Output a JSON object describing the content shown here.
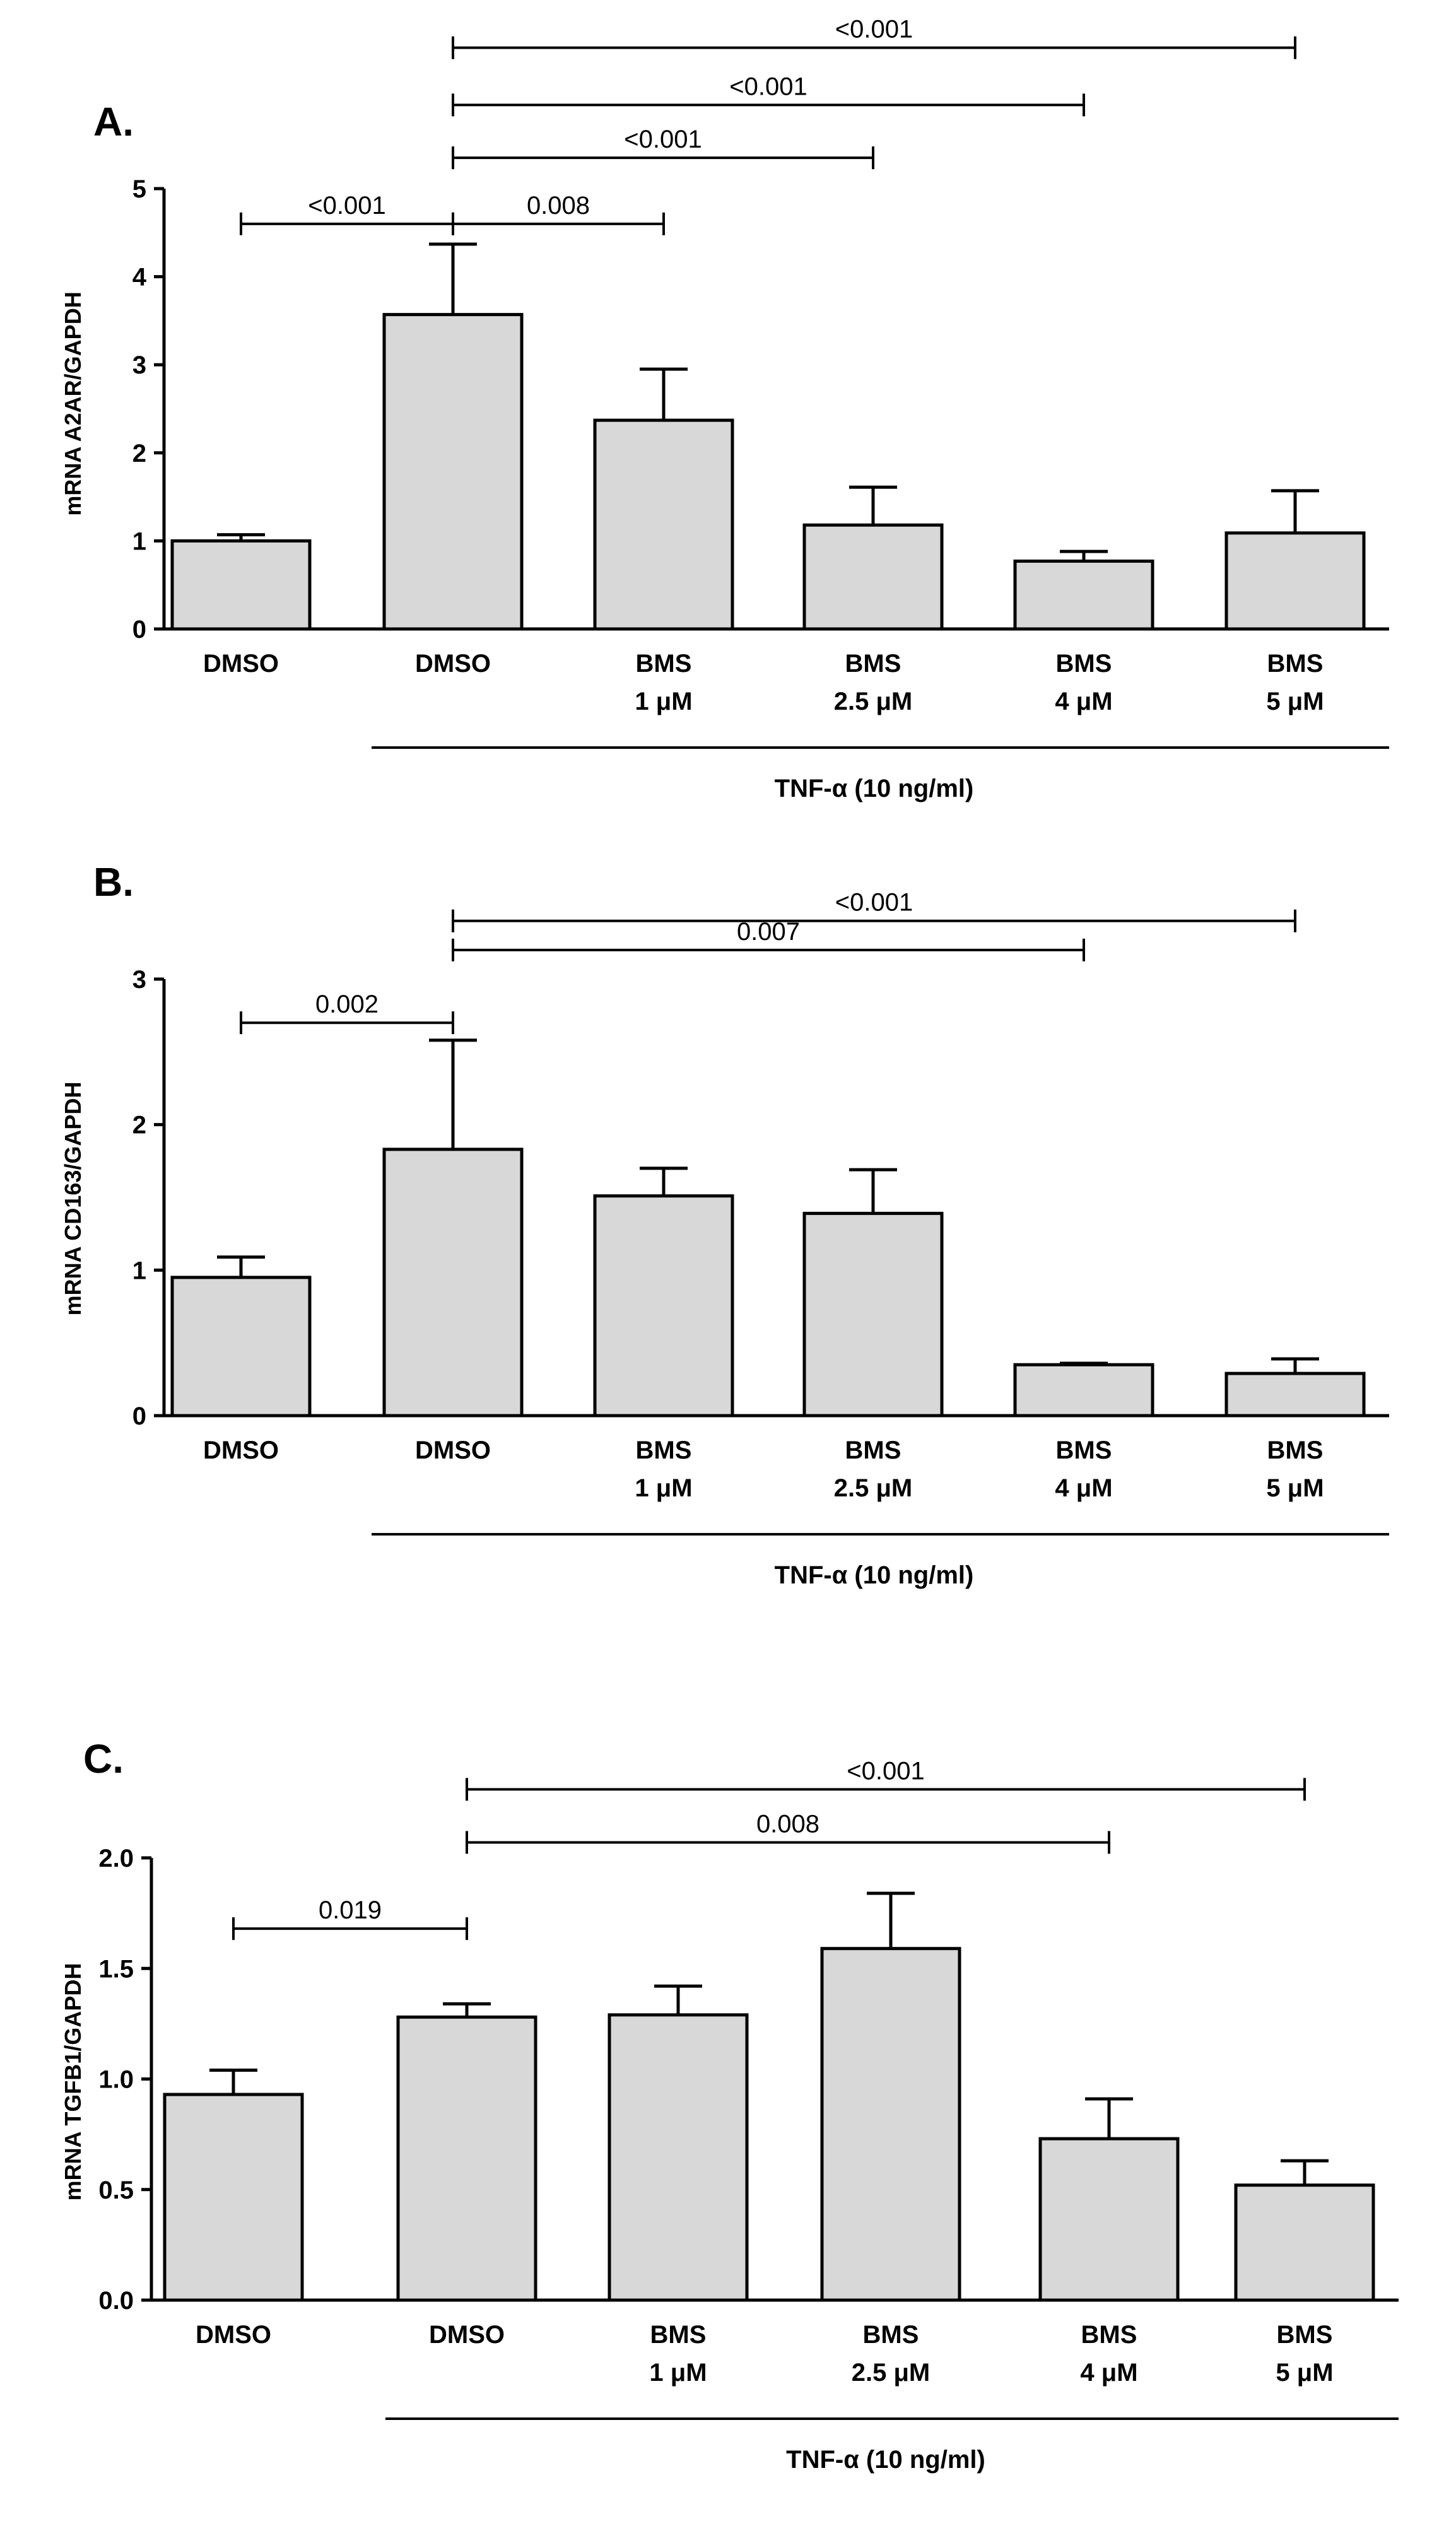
{
  "colors": {
    "bar_fill": "#d8d8d8",
    "stroke": "#000000",
    "background": "#ffffff"
  },
  "chart_data": [
    {
      "type": "bar",
      "panel_label": "A.",
      "ylabel": "mRNA A2AR/GAPDH",
      "ylim": [
        0,
        5
      ],
      "yticks": [
        0,
        1,
        2,
        3,
        4,
        5
      ],
      "ytick_labels": [
        "0",
        "1",
        "2",
        "3",
        "4",
        "5"
      ],
      "categories": [
        {
          "line1": "DMSO",
          "line2": ""
        },
        {
          "line1": "DMSO",
          "line2": ""
        },
        {
          "line1": "BMS",
          "line2": "1 μM"
        },
        {
          "line1": "BMS",
          "line2": "2.5 μM"
        },
        {
          "line1": "BMS",
          "line2": "4 μM"
        },
        {
          "line1": "BMS",
          "line2": "5 μM"
        }
      ],
      "values": [
        1.0,
        3.57,
        2.37,
        1.18,
        0.77,
        1.09
      ],
      "errors": [
        0.07,
        0.8,
        0.58,
        0.43,
        0.11,
        0.48
      ],
      "group_label": "TNF-α (10 ng/ml)",
      "group_span": [
        1,
        5
      ],
      "significance": [
        {
          "from": 0,
          "to": 1,
          "label": "<0.001",
          "y": 4.6
        },
        {
          "from": 1,
          "to": 2,
          "label": "0.008",
          "y": 4.6
        },
        {
          "from": 1,
          "to": 3,
          "label": "<0.001",
          "y": 5.35
        },
        {
          "from": 1,
          "to": 4,
          "label": "<0.001",
          "y": 5.95
        },
        {
          "from": 1,
          "to": 5,
          "label": "<0.001",
          "y": 6.6
        }
      ]
    },
    {
      "type": "bar",
      "panel_label": "B.",
      "ylabel": "mRNA CD163/GAPDH",
      "ylim": [
        0,
        3
      ],
      "yticks": [
        0,
        1,
        2,
        3
      ],
      "ytick_labels": [
        "0",
        "1",
        "2",
        "3"
      ],
      "categories": [
        {
          "line1": "DMSO",
          "line2": ""
        },
        {
          "line1": "DMSO",
          "line2": ""
        },
        {
          "line1": "BMS",
          "line2": "1 μM"
        },
        {
          "line1": "BMS",
          "line2": "2.5 μM"
        },
        {
          "line1": "BMS",
          "line2": "4 μM"
        },
        {
          "line1": "BMS",
          "line2": "5 μM"
        }
      ],
      "values": [
        0.95,
        1.83,
        1.51,
        1.39,
        0.35,
        0.29
      ],
      "errors": [
        0.14,
        0.75,
        0.19,
        0.3,
        0.01,
        0.1
      ],
      "group_label": "TNF-α (10 ng/ml)",
      "group_span": [
        1,
        5
      ],
      "significance": [
        {
          "from": 0,
          "to": 1,
          "label": "0.002",
          "y": 2.7
        },
        {
          "from": 1,
          "to": 4,
          "label": "0.007",
          "y": 3.2
        },
        {
          "from": 1,
          "to": 5,
          "label": "<0.001",
          "y": 3.4
        }
      ]
    },
    {
      "type": "bar",
      "panel_label": "C.",
      "ylabel": "mRNA TGFB1/GAPDH",
      "ylim": [
        0,
        2.0
      ],
      "yticks": [
        0,
        0.5,
        1.0,
        1.5,
        2.0
      ],
      "ytick_labels": [
        "0.0",
        "0.5",
        "1.0",
        "1.5",
        "2.0"
      ],
      "categories": [
        {
          "line1": "DMSO",
          "line2": ""
        },
        {
          "line1": "DMSO",
          "line2": ""
        },
        {
          "line1": "BMS",
          "line2": "1 μM"
        },
        {
          "line1": "BMS",
          "line2": "2.5 μM"
        },
        {
          "line1": "BMS",
          "line2": "4 μM"
        },
        {
          "line1": "BMS",
          "line2": "5 μM"
        }
      ],
      "values": [
        0.93,
        1.28,
        1.29,
        1.59,
        0.73,
        0.52
      ],
      "errors": [
        0.11,
        0.06,
        0.13,
        0.25,
        0.18,
        0.11
      ],
      "group_label": "TNF-α (10 ng/ml)",
      "group_span": [
        1,
        5
      ],
      "significance": [
        {
          "from": 0,
          "to": 1,
          "label": "0.019",
          "y": 1.68
        },
        {
          "from": 1,
          "to": 4,
          "label": "0.008",
          "y": 2.07
        },
        {
          "from": 1,
          "to": 5,
          "label": "<0.001",
          "y": 2.31
        }
      ]
    }
  ]
}
